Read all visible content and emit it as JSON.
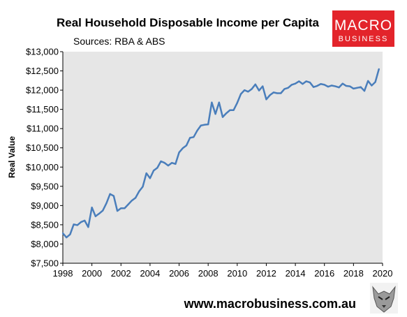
{
  "logo": {
    "line1": "MACRO",
    "line2": "BUSINESS",
    "bg_color": "#e3242b"
  },
  "footer": {
    "url": "www.macrobusiness.com.au",
    "mascot_icon": "wolf-icon"
  },
  "chart_data": {
    "type": "line",
    "title": "Real Household Disposable Income per Capita",
    "subtitle": "Sources: RBA & ABS",
    "xlabel": "",
    "ylabel": "Real Value",
    "xlim": [
      1998,
      2020
    ],
    "ylim": [
      7500,
      13000
    ],
    "x_ticks": [
      "1998",
      "2000",
      "2002",
      "2004",
      "2006",
      "2008",
      "2010",
      "2012",
      "2014",
      "2016",
      "2018",
      "2020"
    ],
    "y_ticks": [
      "$7,500",
      "$8,000",
      "$8,500",
      "$9,000",
      "$9,500",
      "$10,000",
      "$10,500",
      "$11,000",
      "$11,500",
      "$12,000",
      "$12,500",
      "$13,000"
    ],
    "grid": false,
    "plot_bg": "#e6e6e6",
    "series": [
      {
        "color": "#4a7ebb",
        "x": [
          1998.0,
          1998.25,
          1998.5,
          1998.75,
          1999.0,
          1999.25,
          1999.5,
          1999.75,
          2000.0,
          2000.25,
          2000.5,
          2000.75,
          2001.0,
          2001.25,
          2001.5,
          2001.75,
          2002.0,
          2002.25,
          2002.5,
          2002.75,
          2003.0,
          2003.25,
          2003.5,
          2003.75,
          2004.0,
          2004.25,
          2004.5,
          2004.75,
          2005.0,
          2005.25,
          2005.5,
          2005.75,
          2006.0,
          2006.25,
          2006.5,
          2006.75,
          2007.0,
          2007.25,
          2007.5,
          2007.75,
          2008.0,
          2008.25,
          2008.5,
          2008.75,
          2009.0,
          2009.25,
          2009.5,
          2009.75,
          2010.0,
          2010.25,
          2010.5,
          2010.75,
          2011.0,
          2011.25,
          2011.5,
          2011.75,
          2012.0,
          2012.25,
          2012.5,
          2012.75,
          2013.0,
          2013.25,
          2013.5,
          2013.75,
          2014.0,
          2014.25,
          2014.5,
          2014.75,
          2015.0,
          2015.25,
          2015.5,
          2015.75,
          2016.0,
          2016.25,
          2016.5,
          2016.75,
          2017.0,
          2017.25,
          2017.5,
          2017.75,
          2018.0,
          2018.25,
          2018.5,
          2018.75,
          2019.0,
          2019.25,
          2019.5,
          2019.75
        ],
        "values": [
          8280,
          8170,
          8250,
          8510,
          8490,
          8570,
          8610,
          8440,
          8950,
          8720,
          8790,
          8870,
          9060,
          9300,
          9250,
          8860,
          8930,
          8930,
          9030,
          9130,
          9200,
          9370,
          9490,
          9840,
          9710,
          9910,
          9980,
          10150,
          10110,
          10040,
          10110,
          10080,
          10380,
          10490,
          10560,
          10760,
          10780,
          10950,
          11080,
          11100,
          11110,
          11680,
          11380,
          11680,
          11300,
          11400,
          11480,
          11480,
          11670,
          11900,
          12000,
          11960,
          12030,
          12150,
          11990,
          12100,
          11760,
          11870,
          11940,
          11920,
          11920,
          12030,
          12060,
          12140,
          12170,
          12230,
          12160,
          12230,
          12200,
          12080,
          12110,
          12160,
          12140,
          12090,
          12120,
          12100,
          12070,
          12170,
          12110,
          12100,
          12040,
          12060,
          12080,
          11980,
          12240,
          12120,
          12210,
          12550
        ]
      }
    ]
  }
}
